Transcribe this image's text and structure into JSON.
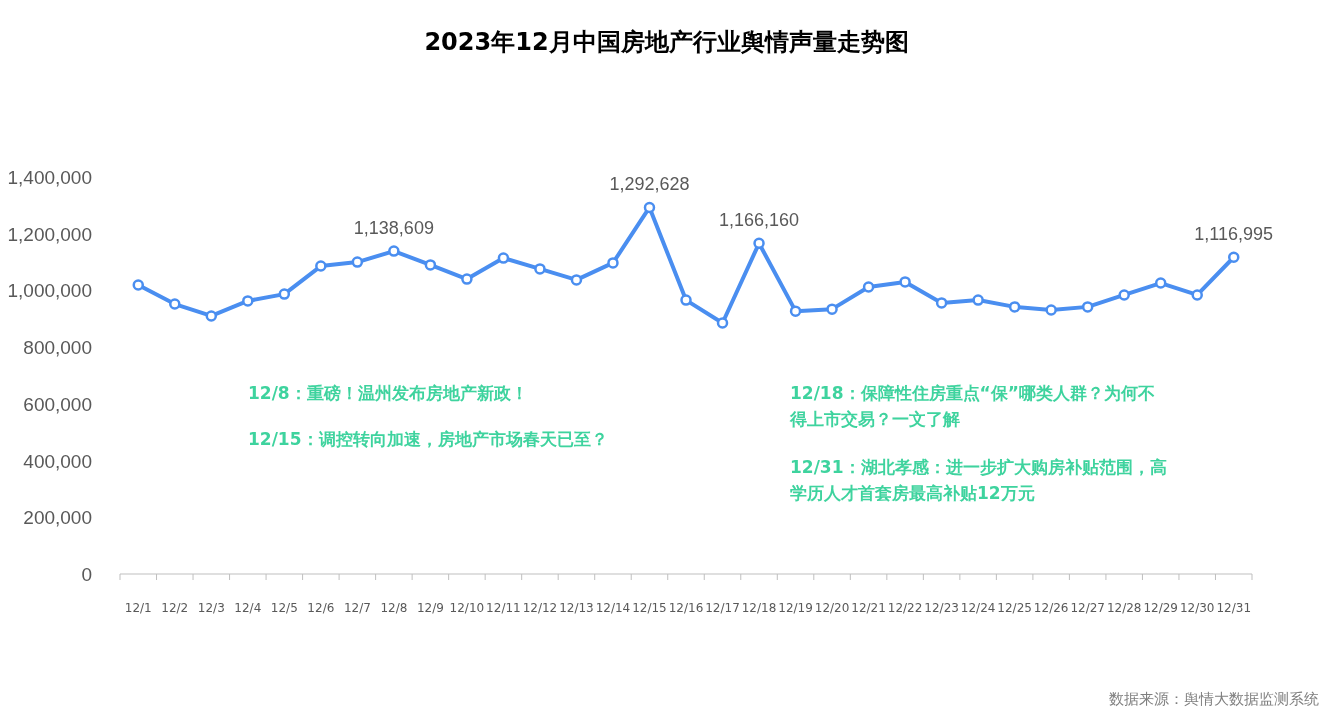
{
  "chart_data": {
    "type": "line",
    "title": "2023年12月中国房地产行业舆情声量走势图",
    "categories": [
      "12/1",
      "12/2",
      "12/3",
      "12/4",
      "12/5",
      "12/6",
      "12/7",
      "12/8",
      "12/9",
      "12/10",
      "12/11",
      "12/12",
      "12/13",
      "12/14",
      "12/15",
      "12/16",
      "12/17",
      "12/18",
      "12/19",
      "12/20",
      "12/21",
      "12/22",
      "12/23",
      "12/24",
      "12/25",
      "12/26",
      "12/27",
      "12/28",
      "12/29",
      "12/30",
      "12/31"
    ],
    "series": [
      {
        "color": "#4a8ef0",
        "values": [
          1019000,
          952000,
          910000,
          963000,
          987000,
          1086000,
          1100000,
          1138609,
          1090000,
          1040000,
          1114000,
          1076000,
          1037000,
          1097000,
          1292628,
          966000,
          885000,
          1166160,
          927000,
          934000,
          1012000,
          1030000,
          956000,
          966000,
          942000,
          931000,
          942000,
          984000,
          1026000,
          984000,
          1116995
        ],
        "value_labels": [
          null,
          null,
          null,
          null,
          null,
          null,
          null,
          "1,138,609",
          null,
          null,
          null,
          null,
          null,
          null,
          "1,292,628",
          null,
          null,
          "1,166,160",
          null,
          null,
          null,
          null,
          null,
          null,
          null,
          null,
          null,
          null,
          null,
          null,
          "1,116,995"
        ]
      }
    ],
    "ylim": [
      0,
      1400000
    ],
    "yticks": [
      {
        "value": 0,
        "label": "0"
      },
      {
        "value": 200000,
        "label": "200,000"
      },
      {
        "value": 400000,
        "label": "400,000"
      },
      {
        "value": 600000,
        "label": "600,000"
      },
      {
        "value": 800000,
        "label": "800,000"
      },
      {
        "value": 1000000,
        "label": "1,000,000"
      },
      {
        "value": 1200000,
        "label": "1,200,000"
      },
      {
        "value": 1400000,
        "label": "1,400,000"
      }
    ],
    "marker": "circle",
    "grid": false,
    "annotations": [
      "12/8：重磅！温州发布房地产新政！",
      "12/15：调控转向加速，房地产市场春天已至？",
      "12/18：保障性住房重点“保”哪类人群？为何不得上市交易？一文了解",
      "12/31：湖北孝感：进一步扩大购房补贴范围，高学历人才首套房最高补贴12万元",
      "数据来源：舆情大数据监测系统"
    ]
  }
}
